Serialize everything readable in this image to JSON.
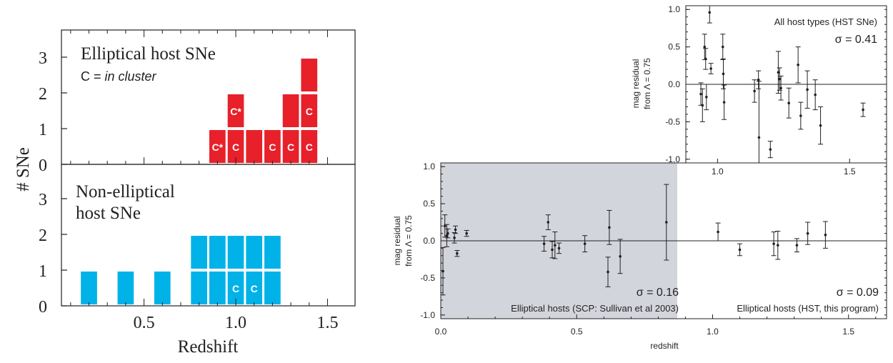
{
  "left_panel": {
    "ylabel": "# SNe",
    "xlabel": "Redshift",
    "x_ticks": [
      "0.5",
      "1.0",
      "1.5"
    ],
    "y_ticks": [
      "0",
      "1",
      "2",
      "3"
    ],
    "top_title": "Elliptical host SNe",
    "top_note_prefix": "C = ",
    "top_note_italic": "in cluster",
    "bottom_title_line1": "Non-elliptical",
    "bottom_title_line2": "host SNe",
    "colors": {
      "elliptical": "#e8202a",
      "non_elliptical": "#00b2e8"
    }
  },
  "right_top": {
    "ylabel_line1": "mag residual",
    "ylabel_line2": "from Λ = 0.75",
    "label": "All host types (HST SNe)",
    "sigma": "σ = 0.41",
    "y_ticks": [
      "1.0",
      "0.5",
      "0.0",
      "-0.5",
      "-1.0"
    ],
    "x_ticks": [
      "1.0",
      "1.5"
    ]
  },
  "right_bottom": {
    "ylabel_line1": "mag residual",
    "ylabel_line2": "from Λ = 0.75",
    "xlabel": "redshift",
    "sigma_left": "σ = 0.16",
    "label_left": "Elliptical hosts (SCP: Sullivan et al 2003)",
    "sigma_right": "σ = 0.09",
    "label_right": "Elliptical hosts (HST, this program)",
    "y_ticks": [
      "1.0",
      "0.5",
      "0.0",
      "-0.5",
      "-1.0"
    ],
    "x_ticks": [
      "0.0",
      "0.5",
      "1.0",
      "1.5"
    ]
  },
  "chart_data": [
    {
      "type": "bar",
      "title": "Elliptical host SNe",
      "xlabel": "Redshift",
      "ylabel": "# SNe",
      "xlim": [
        0.05,
        1.65
      ],
      "ylim": [
        0,
        4
      ],
      "bin_width": 0.1,
      "bins": [
        {
          "x": 0.9,
          "count": 1,
          "cells": [
            "C*"
          ]
        },
        {
          "x": 1.0,
          "count": 2,
          "cells": [
            "C",
            "C*"
          ]
        },
        {
          "x": 1.1,
          "count": 1,
          "cells": [
            ""
          ]
        },
        {
          "x": 1.2,
          "count": 1,
          "cells": [
            "C"
          ]
        },
        {
          "x": 1.3,
          "count": 2,
          "cells": [
            "C",
            ""
          ]
        },
        {
          "x": 1.4,
          "count": 3,
          "cells": [
            "C",
            "C",
            ""
          ]
        }
      ]
    },
    {
      "type": "bar",
      "title": "Non-elliptical host SNe",
      "xlabel": "Redshift",
      "ylabel": "# SNe",
      "xlim": [
        0.05,
        1.65
      ],
      "ylim": [
        0,
        4
      ],
      "bin_width": 0.1,
      "bins": [
        {
          "x": 0.2,
          "count": 1,
          "cells": [
            ""
          ]
        },
        {
          "x": 0.4,
          "count": 1,
          "cells": [
            ""
          ]
        },
        {
          "x": 0.6,
          "count": 1,
          "cells": [
            ""
          ]
        },
        {
          "x": 0.8,
          "count": 2,
          "cells": [
            "",
            ""
          ]
        },
        {
          "x": 0.9,
          "count": 2,
          "cells": [
            "",
            ""
          ]
        },
        {
          "x": 1.0,
          "count": 2,
          "cells": [
            "C",
            ""
          ]
        },
        {
          "x": 1.1,
          "count": 2,
          "cells": [
            "C",
            ""
          ]
        },
        {
          "x": 1.2,
          "count": 2,
          "cells": [
            "",
            ""
          ]
        }
      ]
    },
    {
      "type": "scatter",
      "title": "All host types (HST SNe)",
      "ylabel": "mag residual from Λ = 0.75",
      "xlim": [
        0.88,
        1.64
      ],
      "ylim": [
        -1.05,
        1.05
      ],
      "points": [
        {
          "x": 0.937,
          "y": -0.13,
          "err": 0.15
        },
        {
          "x": 0.943,
          "y": -0.28,
          "err": 0.22
        },
        {
          "x": 0.951,
          "y": 0.5,
          "err": 0.17
        },
        {
          "x": 0.955,
          "y": 0.34,
          "err": 0.14
        },
        {
          "x": 0.958,
          "y": -0.17,
          "err": 0.17
        },
        {
          "x": 0.97,
          "y": 0.96,
          "err": 0.14
        },
        {
          "x": 0.975,
          "y": 0.21,
          "err": 0.07
        },
        {
          "x": 1.02,
          "y": 0.5,
          "err": 0.17
        },
        {
          "x": 1.022,
          "y": 0.14,
          "err": 0.2
        },
        {
          "x": 1.025,
          "y": -0.24,
          "err": 0.23
        },
        {
          "x": 1.14,
          "y": -0.09,
          "err": 0.15
        },
        {
          "x": 1.155,
          "y": 0.06,
          "err": 0.12
        },
        {
          "x": 1.157,
          "y": -0.71,
          "err": 0.75
        },
        {
          "x": 1.2,
          "y": -0.87,
          "err": 0.11
        },
        {
          "x": 1.23,
          "y": 0.16,
          "err": 0.28
        },
        {
          "x": 1.235,
          "y": 0.07,
          "err": 0.15
        },
        {
          "x": 1.24,
          "y": -0.05,
          "err": 0.16
        },
        {
          "x": 1.27,
          "y": -0.25,
          "err": 0.2
        },
        {
          "x": 1.305,
          "y": 0.26,
          "err": 0.24
        },
        {
          "x": 1.315,
          "y": -0.42,
          "err": 0.18
        },
        {
          "x": 1.34,
          "y": -0.07,
          "err": 0.25
        },
        {
          "x": 1.37,
          "y": -0.14,
          "err": 0.2
        },
        {
          "x": 1.39,
          "y": -0.55,
          "err": 0.25
        },
        {
          "x": 1.551,
          "y": -0.34,
          "err": 0.09
        }
      ]
    },
    {
      "type": "scatter",
      "title": "",
      "xlabel": "redshift",
      "ylabel": "mag residual from Λ = 0.75",
      "xlim": [
        0.0,
        1.64
      ],
      "ylim": [
        -1.05,
        1.05
      ],
      "shaded_region": [
        0.0,
        0.87
      ],
      "series": [
        {
          "name": "Elliptical hosts (SCP: Sullivan et al 2003)",
          "sigma": "σ = 0.16",
          "points": [
            {
              "x": 0.008,
              "y": -0.41,
              "err": 0.32
            },
            {
              "x": 0.015,
              "y": 0.2,
              "err": 0.15
            },
            {
              "x": 0.022,
              "y": 0.07,
              "err": 0.15
            },
            {
              "x": 0.026,
              "y": 0.1,
              "err": 0.06
            },
            {
              "x": 0.05,
              "y": 0.04,
              "err": 0.07
            },
            {
              "x": 0.054,
              "y": 0.15,
              "err": 0.05
            },
            {
              "x": 0.06,
              "y": -0.17,
              "err": 0.04
            },
            {
              "x": 0.095,
              "y": 0.1,
              "err": 0.04
            },
            {
              "x": 0.38,
              "y": -0.04,
              "err": 0.1
            },
            {
              "x": 0.395,
              "y": 0.25,
              "err": 0.1
            },
            {
              "x": 0.41,
              "y": -0.12,
              "err": 0.11
            },
            {
              "x": 0.42,
              "y": -0.06,
              "err": 0.18
            },
            {
              "x": 0.435,
              "y": -0.1,
              "err": 0.07
            },
            {
              "x": 0.53,
              "y": -0.04,
              "err": 0.11
            },
            {
              "x": 0.615,
              "y": -0.42,
              "err": 0.2
            },
            {
              "x": 0.62,
              "y": 0.18,
              "err": 0.23
            },
            {
              "x": 0.66,
              "y": -0.21,
              "err": 0.23
            },
            {
              "x": 0.83,
              "y": 0.25,
              "err": 0.51
            }
          ]
        },
        {
          "name": "Elliptical hosts (HST, this program)",
          "sigma": "σ = 0.09",
          "points": [
            {
              "x": 1.02,
              "y": 0.12,
              "err": 0.12
            },
            {
              "x": 1.1,
              "y": -0.12,
              "err": 0.08
            },
            {
              "x": 1.225,
              "y": -0.04,
              "err": 0.16
            },
            {
              "x": 1.24,
              "y": -0.06,
              "err": 0.19
            },
            {
              "x": 1.31,
              "y": -0.06,
              "err": 0.09
            },
            {
              "x": 1.35,
              "y": 0.1,
              "err": 0.15
            },
            {
              "x": 1.415,
              "y": 0.08,
              "err": 0.18
            }
          ]
        }
      ]
    }
  ]
}
